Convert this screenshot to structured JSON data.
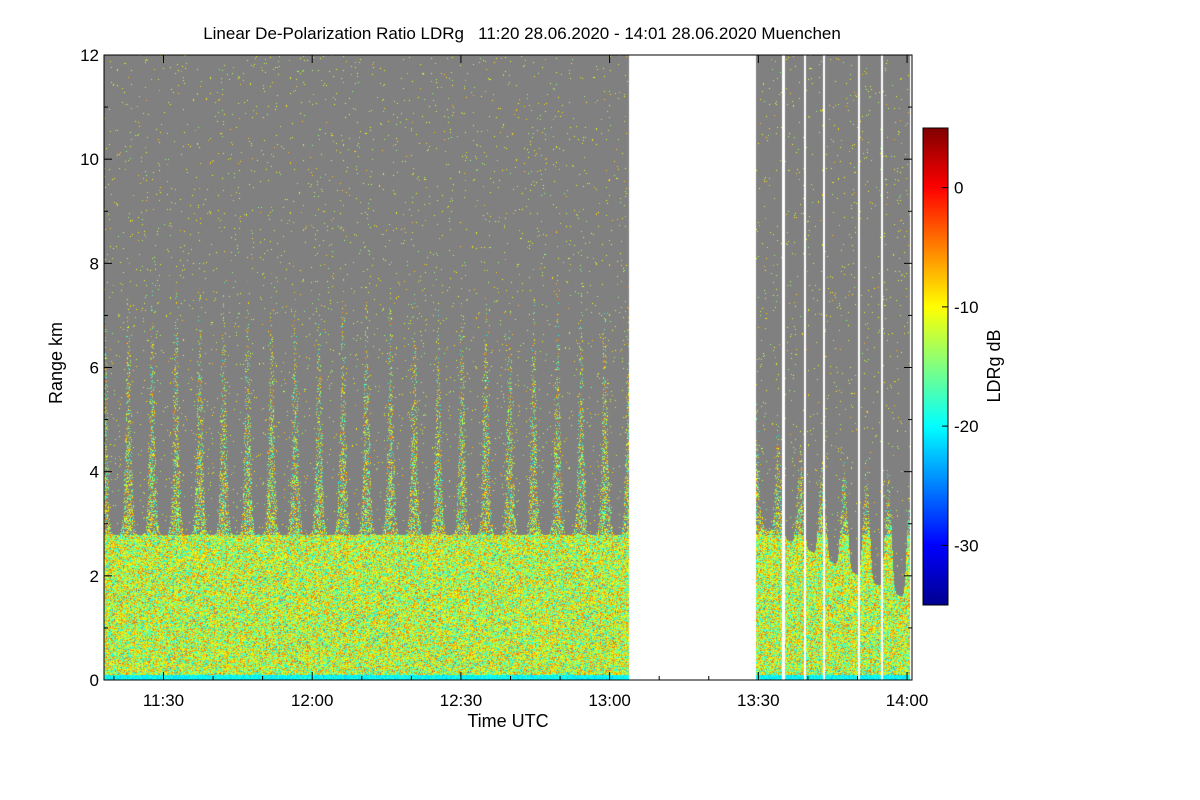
{
  "chart_data": {
    "type": "heatmap",
    "title": "Linear De-Polarization Ratio LDRg   11:20 28.06.2020 - 14:01 28.06.2020 Muenchen",
    "xlabel": "Time UTC",
    "ylabel": "Range km",
    "x_range_minutes_utc": [
      678,
      841
    ],
    "y_range_km": [
      0,
      12
    ],
    "x_ticks": [
      {
        "label": "11:30",
        "minutes": 690
      },
      {
        "label": "12:00",
        "minutes": 720
      },
      {
        "label": "12:30",
        "minutes": 750
      },
      {
        "label": "13:00",
        "minutes": 780
      },
      {
        "label": "13:30",
        "minutes": 810
      },
      {
        "label": "14:00",
        "minutes": 840
      }
    ],
    "y_ticks": [
      0,
      2,
      4,
      6,
      8,
      10,
      12
    ],
    "data_gap_minutes": [
      783.8,
      809.5
    ],
    "segment_2_gaps_minutes": [
      815.0,
      819.3,
      823.2,
      830.2,
      834.8
    ],
    "colorbar": {
      "label": "LDRg dB",
      "range_db": [
        -35,
        5
      ],
      "ticks": [
        0,
        -10,
        -20,
        -30
      ],
      "colors": [
        "#00008f",
        "#0000ff",
        "#0080ff",
        "#00ffff",
        "#80ff80",
        "#ffff00",
        "#ff8000",
        "#ff0000",
        "#800000"
      ]
    },
    "background_no_signal_color": "#808080",
    "description_values": {
      "boundary_layer_top_km": 2.8,
      "plume_count_segment_1": 22,
      "typical_ldr_db_boundary_layer": -12
    }
  }
}
